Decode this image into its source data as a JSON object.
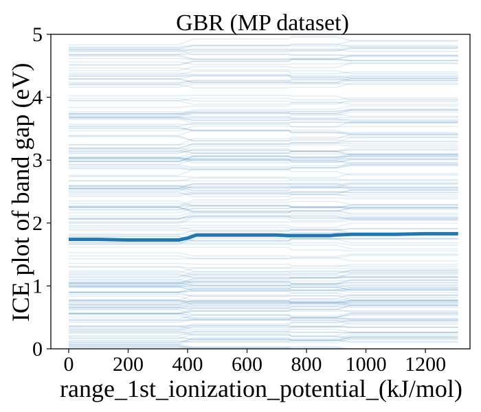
{
  "chart_data": {
    "type": "line",
    "title": "GBR (MP dataset)",
    "xlabel": "range_1st_ionization_potential_(kJ/mol)",
    "ylabel": "ICE plot of band gap (eV)",
    "xlim": [
      -60,
      1350
    ],
    "ylim": [
      0,
      5
    ],
    "xticks": [
      0,
      200,
      400,
      600,
      800,
      1000,
      1200
    ],
    "yticks": [
      0,
      1,
      2,
      3,
      4,
      5
    ],
    "grid": false,
    "legend": "none",
    "colors": {
      "ice": "#1f77b4",
      "average": "#1f77b4",
      "axes": "#000000"
    },
    "ice_curves": {
      "description_of_shape": "",
      "x_range": [
        0,
        1310
      ],
      "count_approx": 220,
      "step_points_x": [
        400,
        420,
        740,
        900,
        950
      ],
      "y_min": 0.02,
      "y_max": 4.9
    },
    "series": [
      {
        "x": [
          0,
          100,
          200,
          300,
          370,
          400,
          430,
          600,
          700,
          740,
          800,
          880,
          900,
          950,
          1000,
          1100,
          1200,
          1310
        ],
        "values": [
          1.74,
          1.74,
          1.73,
          1.73,
          1.73,
          1.76,
          1.81,
          1.81,
          1.81,
          1.8,
          1.8,
          1.8,
          1.81,
          1.82,
          1.82,
          1.82,
          1.83,
          1.83
        ]
      }
    ]
  }
}
